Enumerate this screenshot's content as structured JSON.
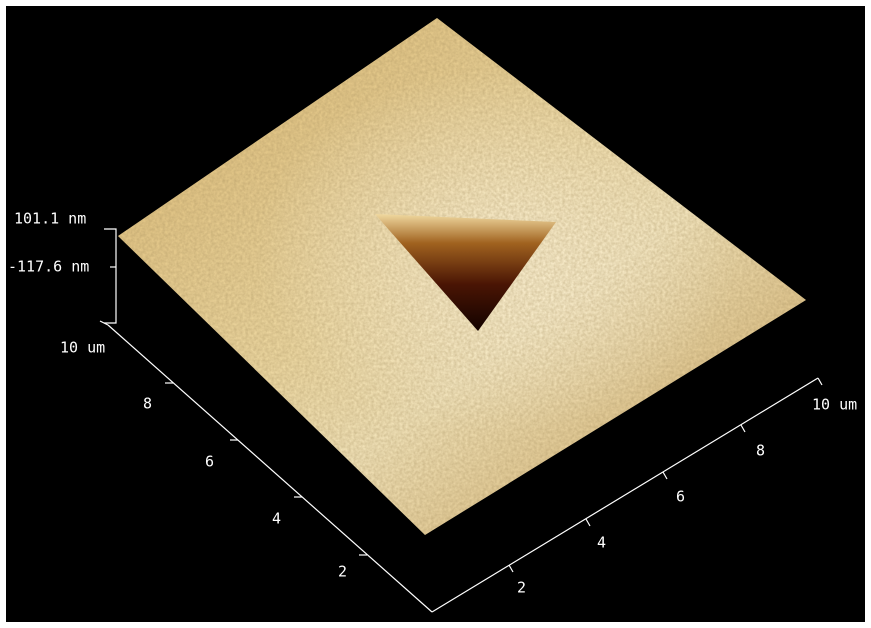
{
  "z_axis": {
    "top_label": "101.1 nm",
    "bottom_label": "-117.6 nm"
  },
  "left_axis": {
    "ticks": [
      "2",
      "4",
      "6",
      "8",
      "10 um"
    ]
  },
  "right_axis": {
    "ticks": [
      "2",
      "4",
      "6",
      "8",
      "10 um"
    ]
  }
}
